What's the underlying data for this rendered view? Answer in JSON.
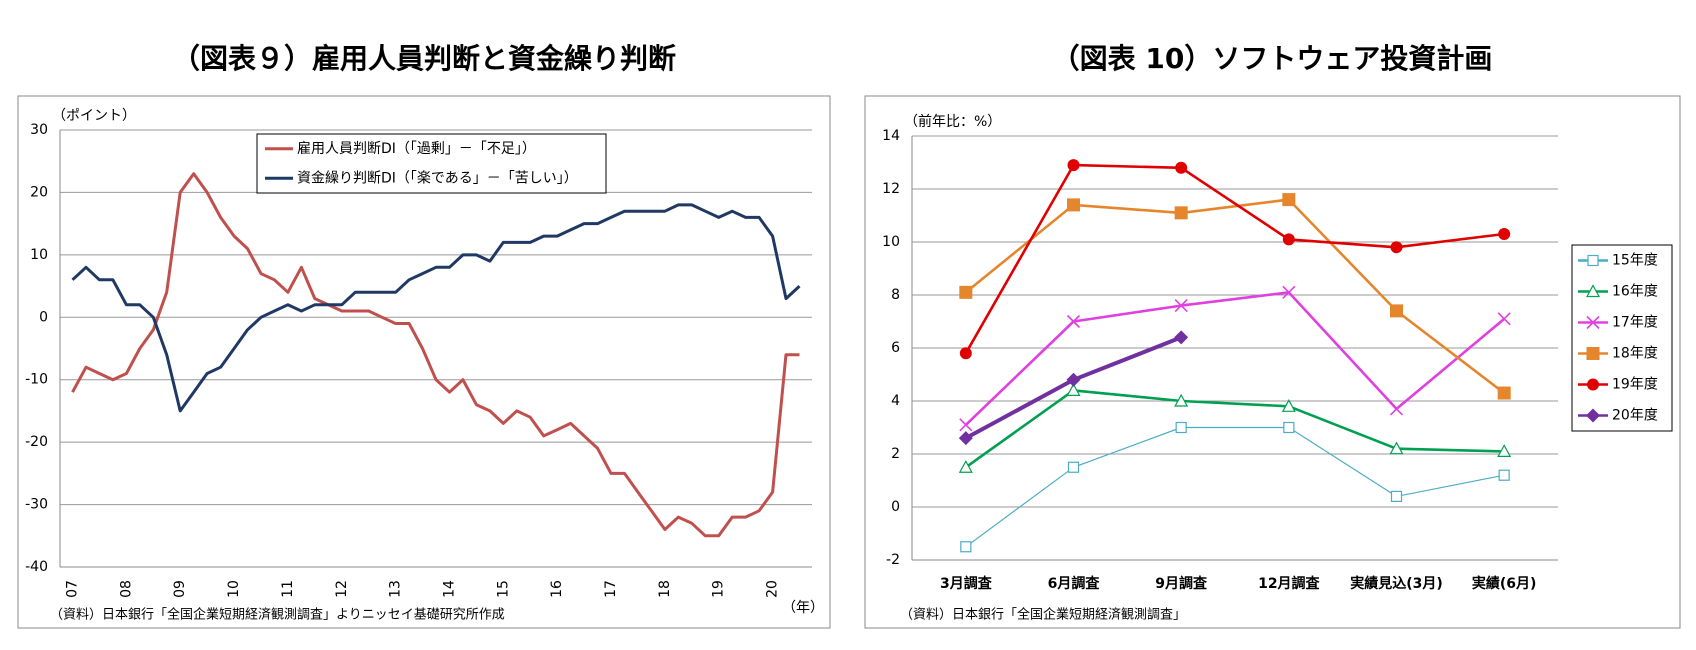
{
  "chart_data": [
    {
      "type": "line",
      "title": "（図表９）雇用人員判断と資金繰り判断",
      "y_label": "（ポイント）",
      "x_unit": "（年）",
      "source": "（資料）日本銀行「全国企業短期経済観測調査」よりニッセイ基礎研究所作成",
      "categories": [
        "07",
        null,
        null,
        null,
        "08",
        null,
        null,
        null,
        "09",
        null,
        null,
        null,
        "10",
        null,
        null,
        null,
        "11",
        null,
        null,
        null,
        "12",
        null,
        null,
        null,
        "13",
        null,
        null,
        null,
        "14",
        null,
        null,
        null,
        "15",
        null,
        null,
        null,
        "16",
        null,
        null,
        null,
        "17",
        null,
        null,
        null,
        "18",
        null,
        null,
        null,
        "19",
        null,
        null,
        null,
        "20",
        null,
        null
      ],
      "series": [
        {
          "name": "雇用人員判断DI（「過剰」－「不足」）",
          "color": "#c0504d",
          "values": [
            -12,
            -8,
            -9,
            -10,
            -9,
            -5,
            -2,
            4,
            20,
            23,
            20,
            16,
            13,
            11,
            7,
            6,
            4,
            8,
            3,
            2,
            1,
            1,
            1,
            0,
            -1,
            -1,
            -5,
            -10,
            -12,
            -10,
            -14,
            -15,
            -17,
            -15,
            -16,
            -19,
            -18,
            -17,
            -19,
            -21,
            -25,
            -25,
            -28,
            -31,
            -34,
            -32,
            -33,
            -35,
            -35,
            -32,
            -32,
            -31,
            -28,
            -6,
            -6
          ]
        },
        {
          "name": "資金繰り判断DI（「楽である」－「苦しい」）",
          "color": "#1f3864",
          "values": [
            6,
            8,
            6,
            6,
            2,
            2,
            0,
            -6,
            -15,
            -12,
            -9,
            -8,
            -5,
            -2,
            0,
            1,
            2,
            1,
            2,
            2,
            2,
            4,
            4,
            4,
            4,
            6,
            7,
            8,
            8,
            10,
            10,
            9,
            12,
            12,
            12,
            13,
            13,
            14,
            15,
            15,
            16,
            17,
            17,
            17,
            17,
            18,
            18,
            17,
            16,
            17,
            16,
            16,
            13,
            3,
            5
          ]
        }
      ],
      "ylim": [
        -40,
        30
      ],
      "yticks": [
        -40,
        -30,
        -20,
        -10,
        0,
        10,
        20,
        30
      ],
      "grid": true
    },
    {
      "type": "line",
      "title": "（図表 10）ソフトウェア投資計画",
      "y_label": "（前年比：%）",
      "source": "（資料）日本銀行「全国企業短期経済観測調査」",
      "categories": [
        "3月調査",
        "6月調査",
        "9月調査",
        "12月調査",
        "実績見込(3月)",
        "実績(6月)"
      ],
      "series": [
        {
          "name": "15年度",
          "color": "#4bacc6",
          "marker": "square-open",
          "values": [
            -1.5,
            1.5,
            3.0,
            3.0,
            0.4,
            1.2
          ]
        },
        {
          "name": "16年度",
          "color": "#00a050",
          "marker": "triangle-open",
          "values": [
            1.5,
            4.4,
            4.0,
            3.8,
            2.2,
            2.1
          ]
        },
        {
          "name": "17年度",
          "color": "#e040e0",
          "marker": "x",
          "values": [
            3.1,
            7.0,
            7.6,
            8.1,
            3.7,
            7.1
          ]
        },
        {
          "name": "18年度",
          "color": "#e6862c",
          "marker": "square",
          "values": [
            8.1,
            11.4,
            11.1,
            11.6,
            7.4,
            4.3
          ]
        },
        {
          "name": "19年度",
          "color": "#e00000",
          "marker": "circle",
          "values": [
            5.8,
            12.9,
            12.8,
            10.1,
            9.8,
            10.3
          ]
        },
        {
          "name": "20年度",
          "color": "#7030a0",
          "marker": "diamond",
          "values": [
            2.6,
            4.8,
            6.4,
            null,
            null,
            null
          ]
        }
      ],
      "ylim": [
        -2,
        14
      ],
      "yticks": [
        -2,
        0,
        2,
        4,
        6,
        8,
        10,
        12,
        14
      ],
      "grid": true
    }
  ]
}
